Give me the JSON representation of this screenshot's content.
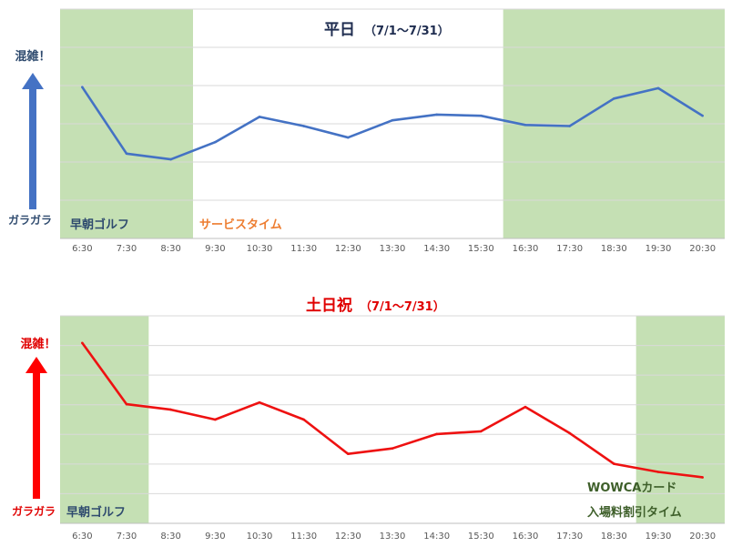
{
  "chart_data": [
    {
      "type": "line",
      "title": "平日",
      "subtitle": "（7/1〜7/31）",
      "categories": [
        "6:30",
        "7:30",
        "8:30",
        "9:30",
        "10:30",
        "11:30",
        "12:30",
        "13:30",
        "14:30",
        "15:30",
        "16:30",
        "17:30",
        "18:30",
        "19:30",
        "20:30"
      ],
      "series": [
        {
          "values": [
            6.6,
            3.7,
            3.45,
            4.2,
            5.3,
            4.9,
            4.4,
            5.15,
            5.4,
            5.35,
            4.95,
            4.9,
            6.1,
            6.55,
            5.35
          ]
        }
      ],
      "ylim": [
        0,
        10
      ],
      "grid": true,
      "color": "#4472C4",
      "y_top_label": "混雑！",
      "y_bottom_label": "ガラガラ",
      "arrow_color": "#4472C4",
      "title_color": "#1F2D50",
      "bands": [
        {
          "from": "6:30",
          "to": "8:30",
          "label": "早朝ゴルフ",
          "label_color": "#2E4A6E"
        },
        {
          "from": "16:30",
          "to": "20:30",
          "label": "",
          "label_color": "#2E4A6E"
        }
      ],
      "annotations": [
        {
          "text": "サービスタイム",
          "color": "#ED7D31"
        }
      ]
    },
    {
      "type": "line",
      "title": "土日祝",
      "subtitle": "（7/1〜7/31）",
      "categories": [
        "6:30",
        "7:30",
        "8:30",
        "9:30",
        "10:30",
        "11:30",
        "12:30",
        "13:30",
        "14:30",
        "15:30",
        "16:30",
        "17:30",
        "18:30",
        "19:30",
        "20:30"
      ],
      "series": [
        {
          "values": [
            10.0,
            6.6,
            6.3,
            5.75,
            6.7,
            5.75,
            3.85,
            4.15,
            4.95,
            5.1,
            6.45,
            5.0,
            3.3,
            2.85,
            2.55
          ]
        }
      ],
      "ylim": [
        0,
        11.5
      ],
      "grid": true,
      "color": "#EE1111",
      "y_top_label": "混雑！",
      "y_bottom_label": "ガラガラ",
      "arrow_color": "#FF0000",
      "title_color": "#E00000",
      "bands": [
        {
          "from": "6:30",
          "to": "7:30",
          "label": "早朝ゴルフ",
          "label_color": "#2E4A6E"
        },
        {
          "from": "19:30",
          "to": "20:30",
          "label": "",
          "label_color": "#2E4A6E"
        }
      ],
      "annotations": [
        {
          "text": "WOWCAカード",
          "color": "#3E5F2A"
        },
        {
          "text": "入場料割引タイム",
          "color": "#3E5F2A"
        }
      ]
    }
  ]
}
